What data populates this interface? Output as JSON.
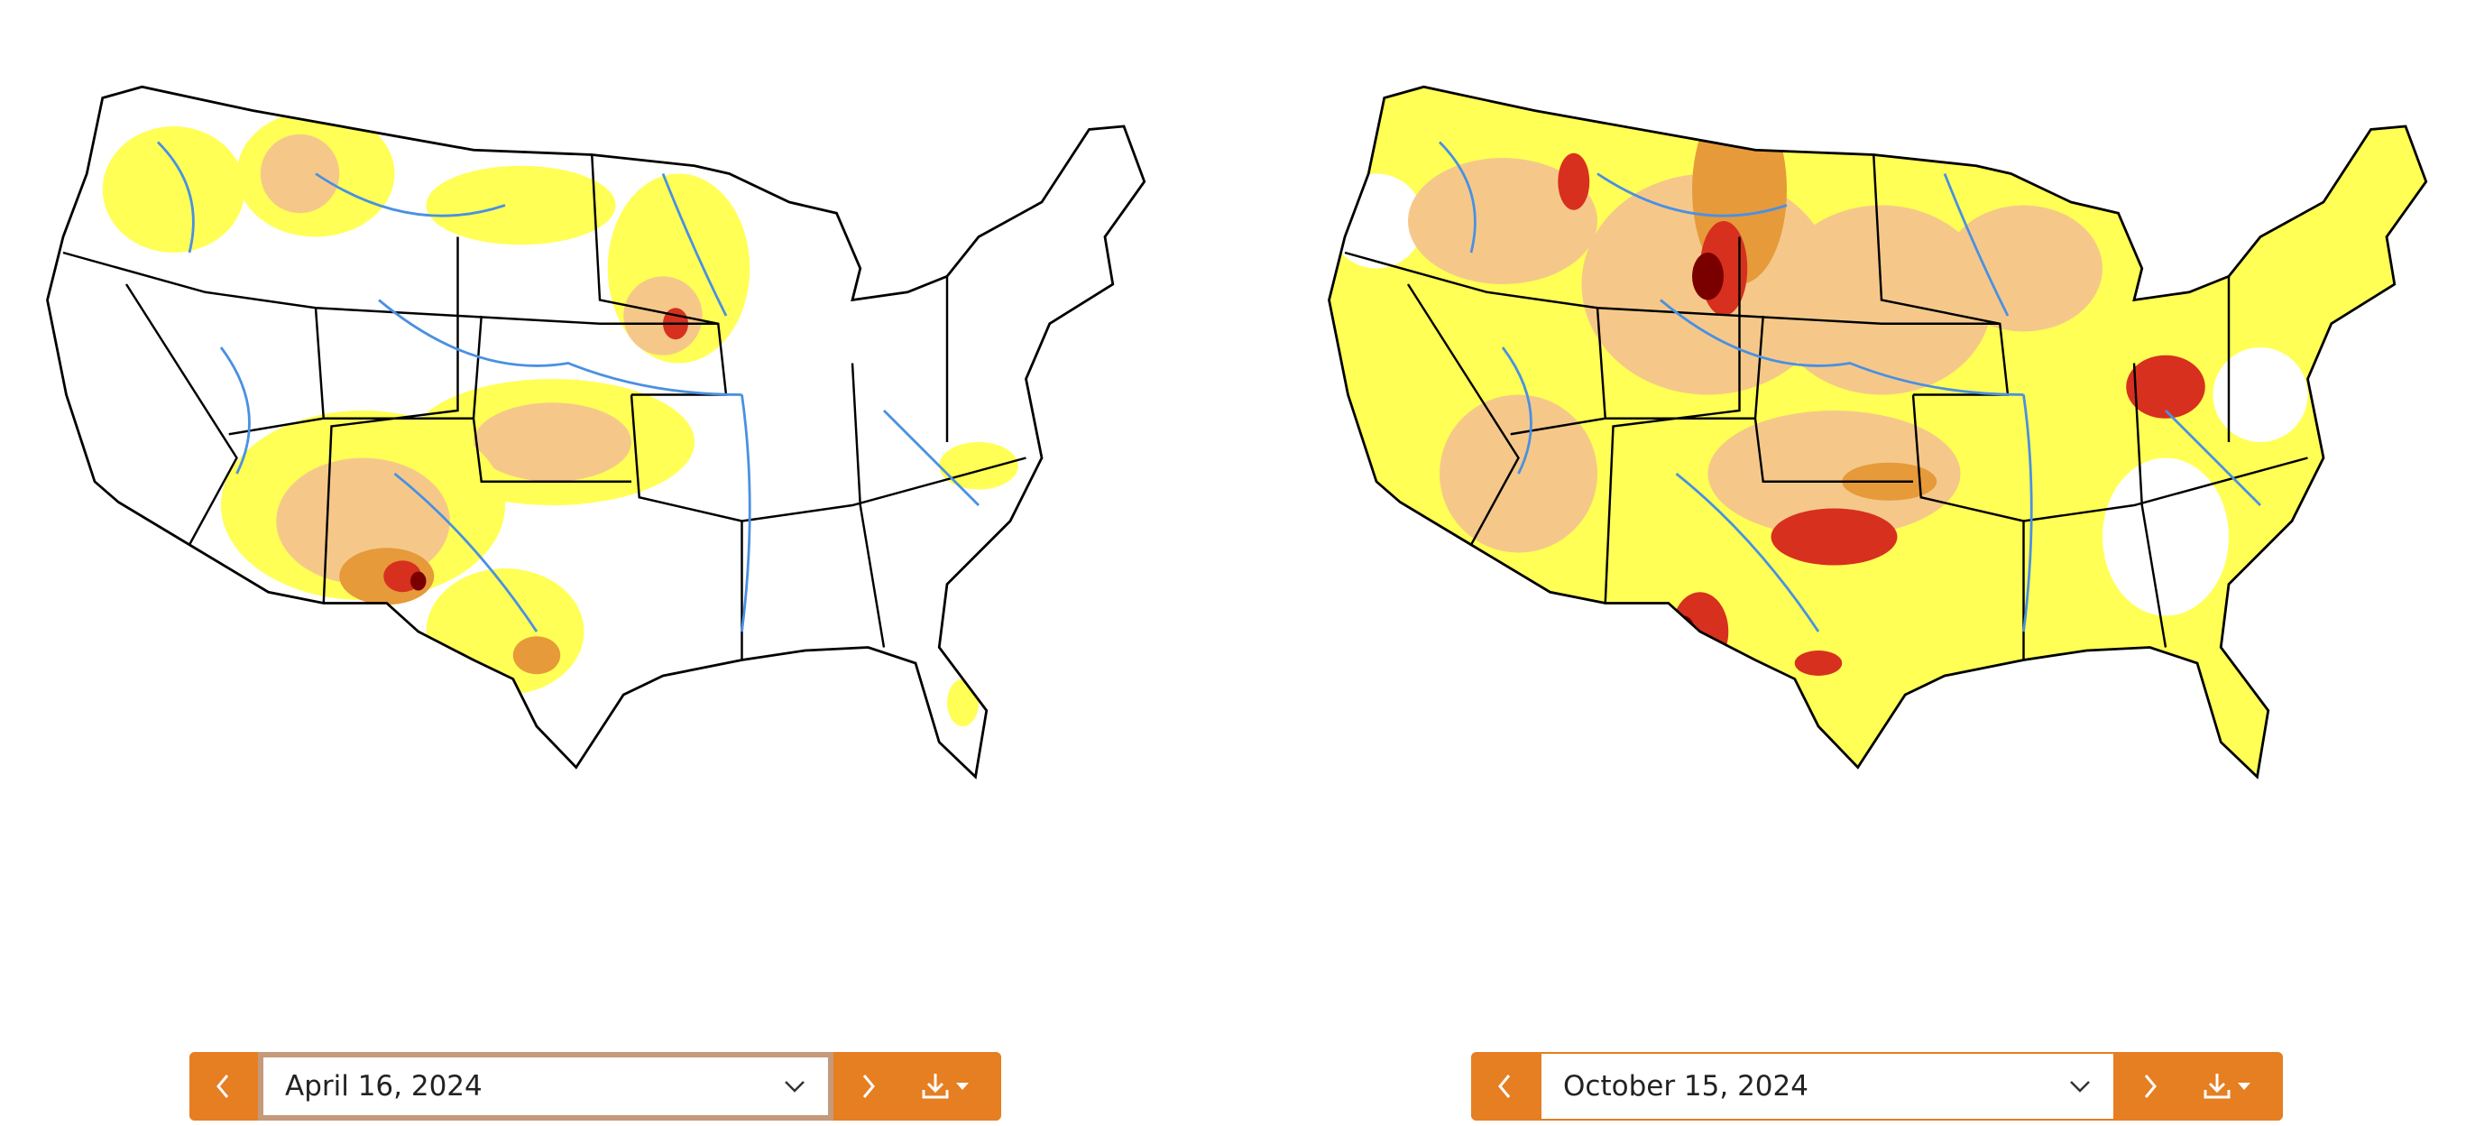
{
  "panels": [
    {
      "date": "April 16, 2024"
    },
    {
      "date": "October 15, 2024"
    }
  ]
}
